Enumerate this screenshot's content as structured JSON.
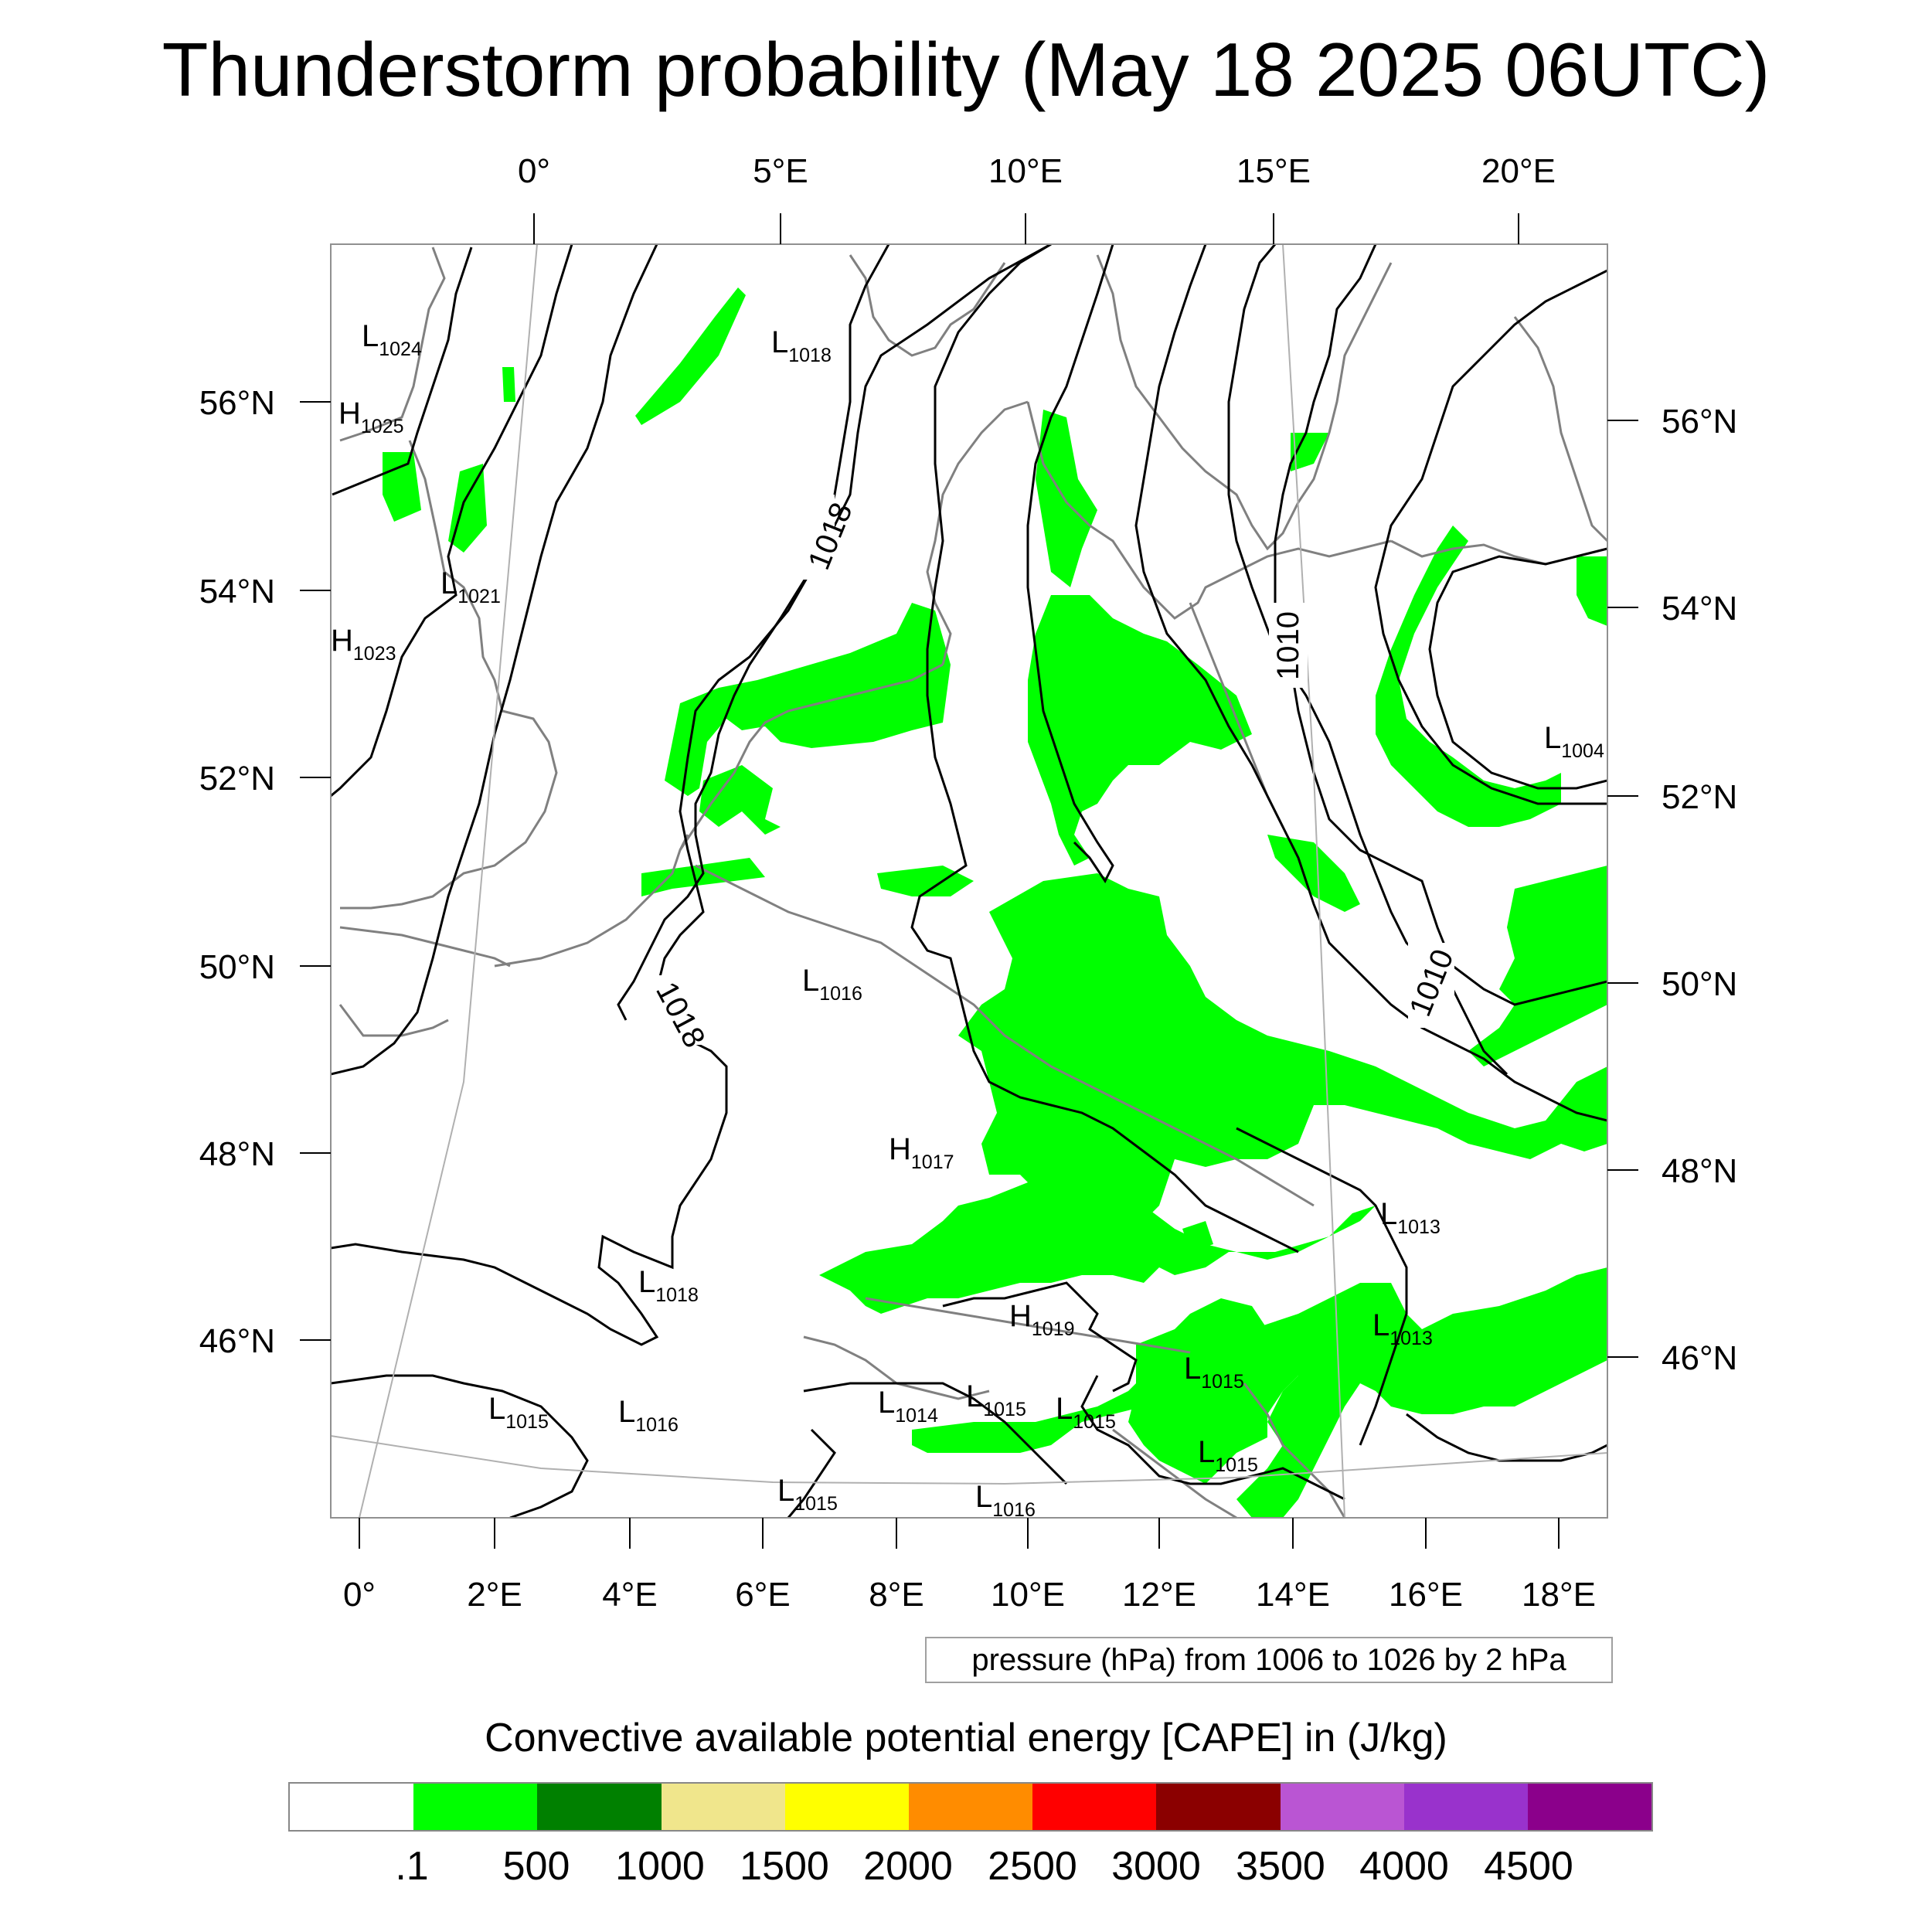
{
  "title": "Thunderstorm probability (May 18 2025 06UTC)",
  "map": {
    "top_lon_labels": [
      "0°",
      "5°E",
      "10°E",
      "15°E",
      "20°E"
    ],
    "bottom_lon_labels": [
      "0°",
      "2°E",
      "4°E",
      "6°E",
      "8°E",
      "10°E",
      "12°E",
      "14°E",
      "16°E",
      "18°E"
    ],
    "left_lat_labels": [
      "56°N",
      "54°N",
      "52°N",
      "50°N",
      "48°N",
      "46°N"
    ],
    "right_lat_labels": [
      "56°N",
      "54°N",
      "52°N",
      "50°N",
      "48°N",
      "46°N"
    ],
    "pressure_centers": [
      {
        "type": "L",
        "value": "1024"
      },
      {
        "type": "H",
        "value": "1025"
      },
      {
        "type": "L",
        "value": "1021"
      },
      {
        "type": "H",
        "value": "1023"
      },
      {
        "type": "L",
        "value": "1018"
      },
      {
        "type": "L",
        "value": "1016"
      },
      {
        "type": "H",
        "value": "1017"
      },
      {
        "type": "L",
        "value": "1018"
      },
      {
        "type": "H",
        "value": "1019"
      },
      {
        "type": "L",
        "value": "1013"
      },
      {
        "type": "L",
        "value": "1013"
      },
      {
        "type": "L",
        "value": "1015"
      },
      {
        "type": "L",
        "value": "1015"
      },
      {
        "type": "L",
        "value": "1015"
      },
      {
        "type": "L",
        "value": "1015"
      },
      {
        "type": "L",
        "value": "1015"
      },
      {
        "type": "L",
        "value": "1016"
      },
      {
        "type": "L",
        "value": "1014"
      },
      {
        "type": "L",
        "value": "1015"
      },
      {
        "type": "L",
        "value": "1016"
      },
      {
        "type": "L",
        "value": "1004"
      }
    ],
    "isobar_labels": [
      "1018",
      "1018",
      "1010",
      "1010"
    ],
    "cape_color": "#00ff00",
    "isobar_color": "#000000",
    "coastline_color": "#808080"
  },
  "pressure_note": "pressure (hPa) from 1006 to 1026 by 2 hPa",
  "colorbar": {
    "title": "Convective available potential energy [CAPE] in (J/kg)",
    "colors": [
      "#ffffff",
      "#00ff00",
      "#008000",
      "#f0e68c",
      "#ffff00",
      "#ff8c00",
      "#ff0000",
      "#8b0000",
      "#ba55d3",
      "#9932cc",
      "#8b008b"
    ],
    "labels": [
      ".1",
      "500",
      "1000",
      "1500",
      "2000",
      "2500",
      "3000",
      "3500",
      "4000",
      "4500"
    ]
  }
}
